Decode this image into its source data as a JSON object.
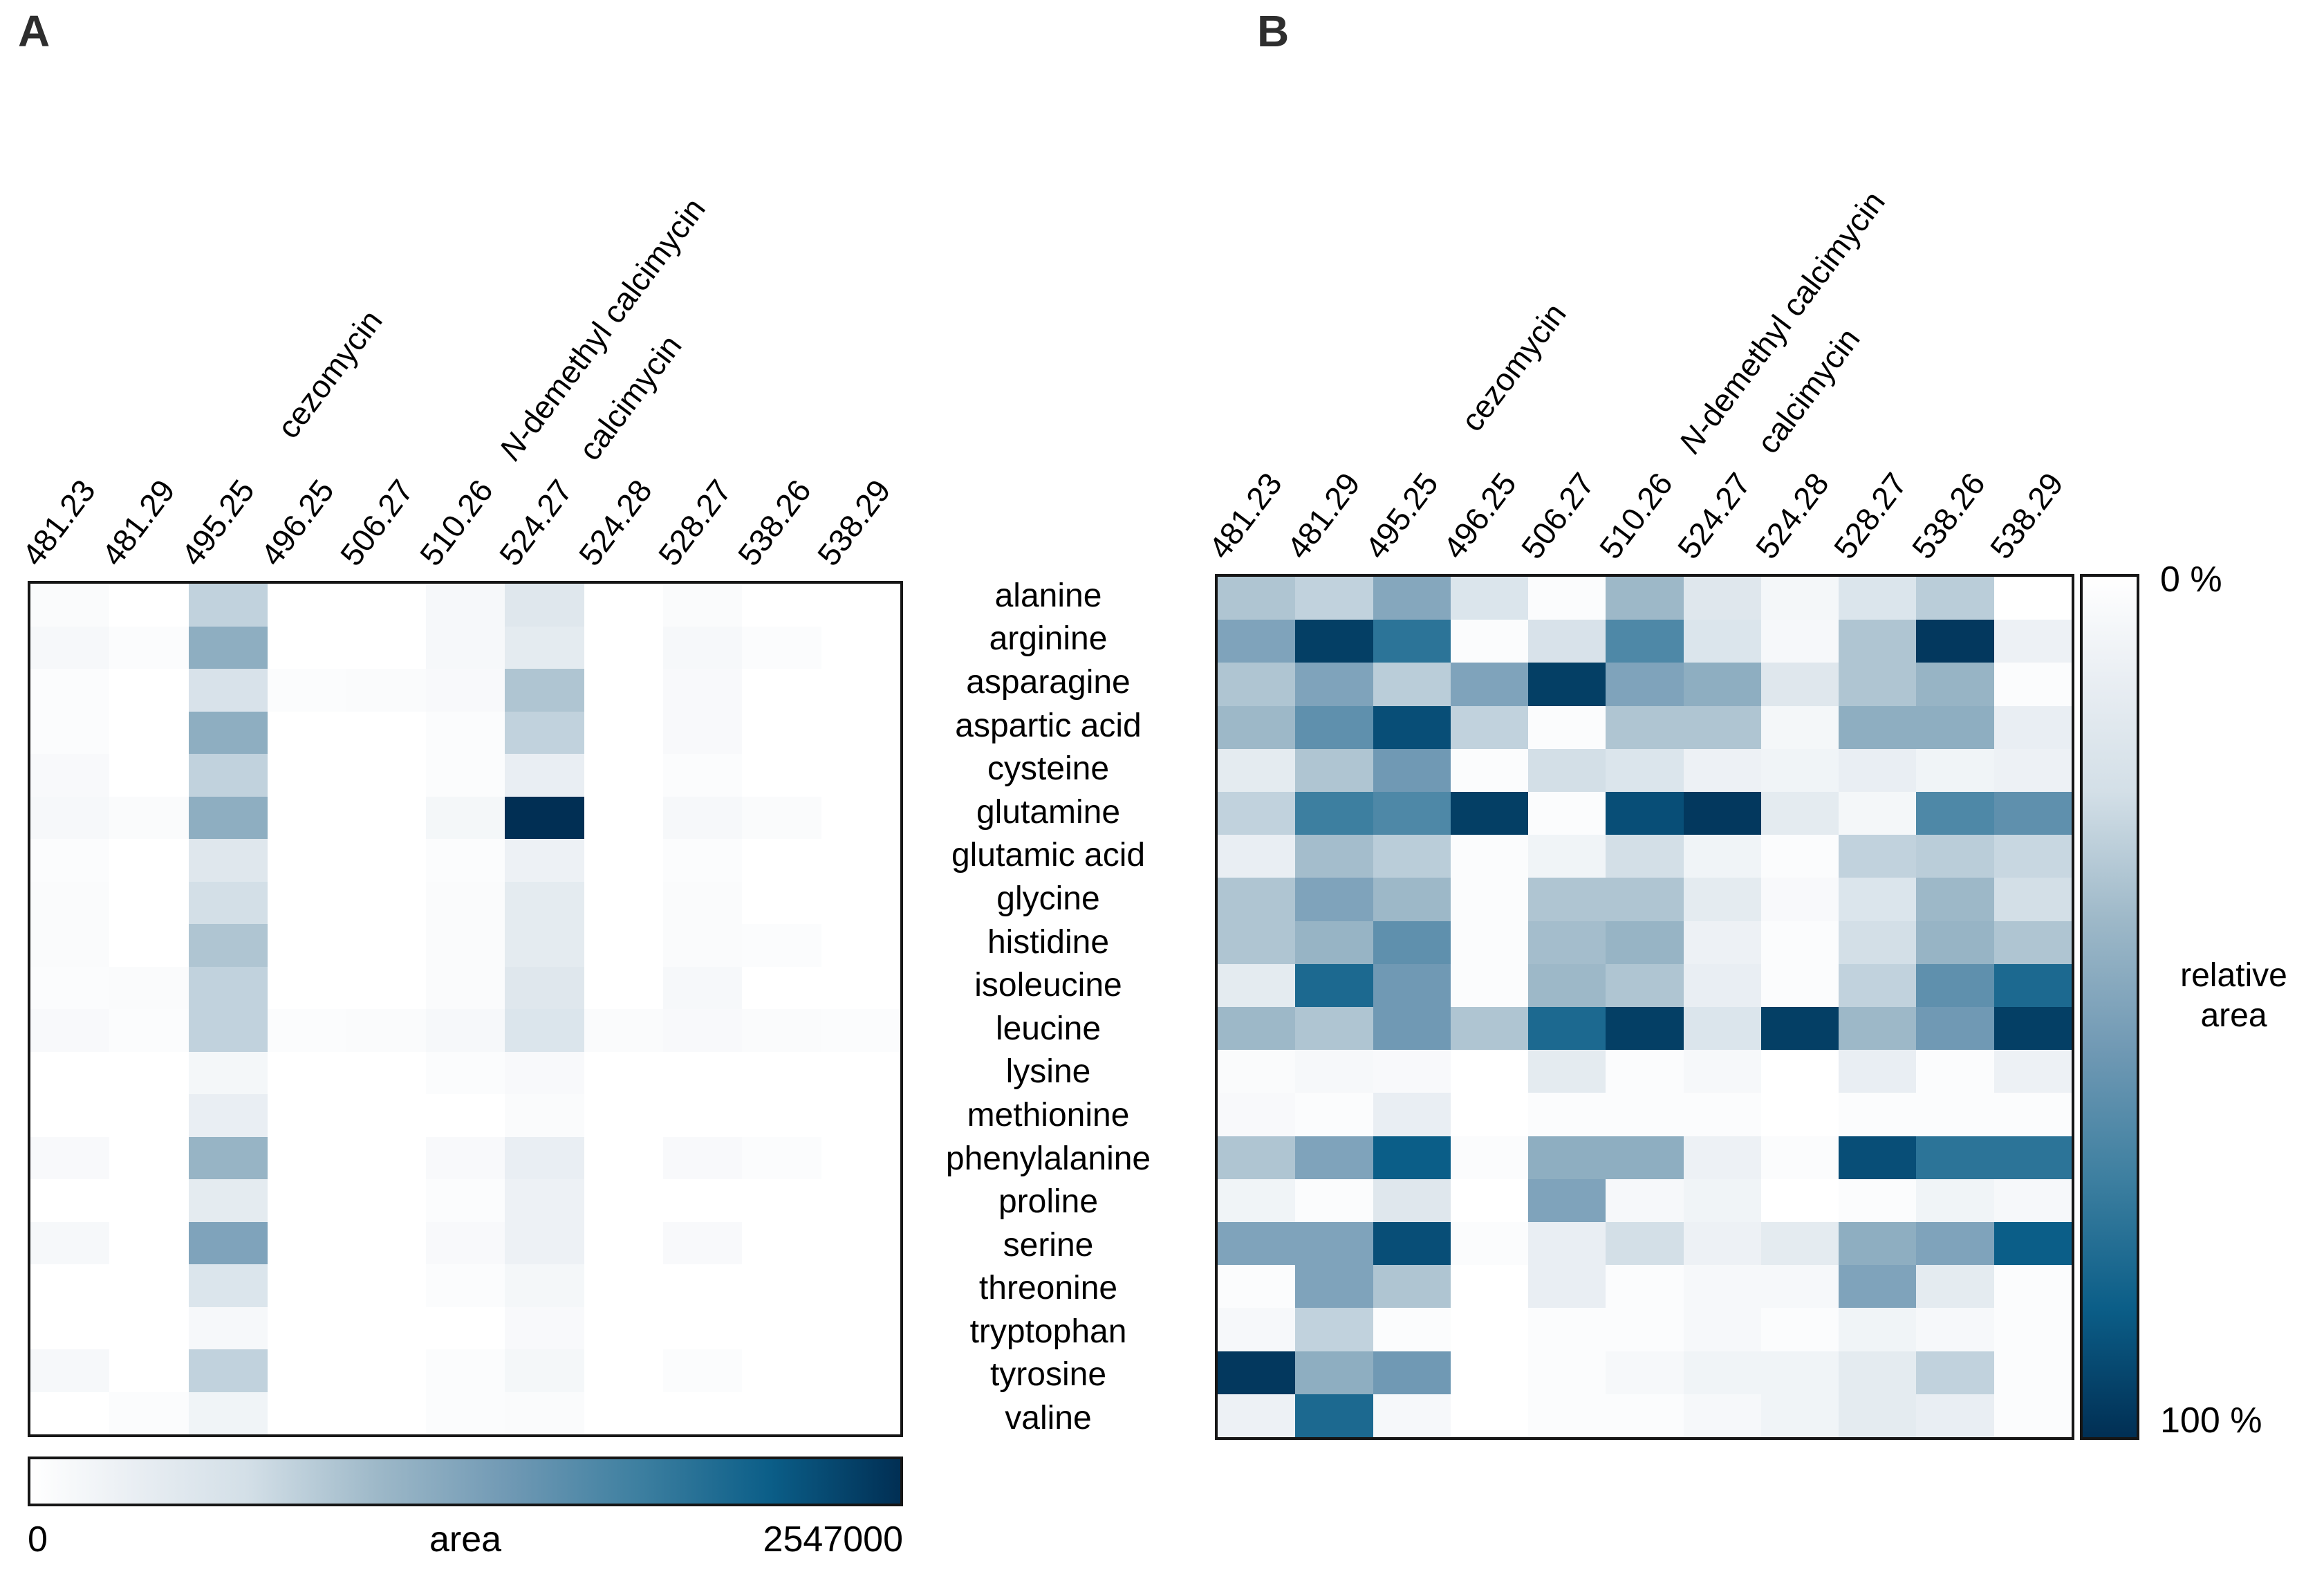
{
  "figure": {
    "panel_a_letter": "A",
    "panel_b_letter": "B",
    "colorbar_a": {
      "min": "0",
      "title": "area",
      "max": "2547000"
    },
    "colorbar_b": {
      "min": "0 %",
      "title_lines": [
        "relative",
        "area"
      ],
      "max": "100 %"
    }
  },
  "colormap_stops": [
    [
      0.0,
      "#ffffff"
    ],
    [
      0.12,
      "#e9eef3"
    ],
    [
      0.25,
      "#d3dfe7"
    ],
    [
      0.4,
      "#9db8c8"
    ],
    [
      0.55,
      "#7099b4"
    ],
    [
      0.7,
      "#3d7fa0"
    ],
    [
      0.85,
      "#0b5e88"
    ],
    [
      1.0,
      "#012f54"
    ]
  ],
  "chart_data": [
    {
      "type": "heatmap",
      "panel": "A",
      "legend": "area",
      "value_range": [
        0,
        2547000
      ],
      "values_are": "fraction_of_max",
      "columns": [
        {
          "m_z": "481.23",
          "compound": ""
        },
        {
          "m_z": "481.29",
          "compound": ""
        },
        {
          "m_z": "495.25",
          "compound": "cezomycin"
        },
        {
          "m_z": "496.25",
          "compound": ""
        },
        {
          "m_z": "506.27",
          "compound": ""
        },
        {
          "m_z": "510.26",
          "compound": "N-demethyl calcimycin"
        },
        {
          "m_z": "524.27",
          "compound": "calcimycin"
        },
        {
          "m_z": "524.28",
          "compound": ""
        },
        {
          "m_z": "528.27",
          "compound": ""
        },
        {
          "m_z": "538.26",
          "compound": ""
        },
        {
          "m_z": "538.29",
          "compound": ""
        }
      ],
      "rows": [
        "alanine",
        "arginine",
        "asparagine",
        "aspartic acid",
        "cysteine",
        "glutamine",
        "glutamic acid",
        "glycine",
        "histidine",
        "isoleucine",
        "leucine",
        "lysine",
        "methionine",
        "phenylalanine",
        "proline",
        "serine",
        "threonine",
        "tryptophan",
        "tyrosine",
        "valine"
      ],
      "matrix": [
        [
          0.03,
          0.0,
          0.3,
          0.0,
          0.0,
          0.05,
          0.18,
          0.0,
          0.03,
          0.0,
          0.0
        ],
        [
          0.05,
          0.02,
          0.45,
          0.0,
          0.0,
          0.05,
          0.15,
          0.0,
          0.05,
          0.02,
          0.0
        ],
        [
          0.02,
          0.0,
          0.22,
          0.02,
          0.03,
          0.04,
          0.35,
          0.0,
          0.04,
          0.0,
          0.0
        ],
        [
          0.02,
          0.0,
          0.45,
          0.0,
          0.0,
          0.02,
          0.3,
          0.0,
          0.04,
          0.0,
          0.0
        ],
        [
          0.04,
          0.0,
          0.3,
          0.0,
          0.0,
          0.02,
          0.12,
          0.0,
          0.02,
          0.0,
          0.0
        ],
        [
          0.05,
          0.03,
          0.45,
          0.0,
          0.0,
          0.06,
          1.0,
          0.0,
          0.05,
          0.03,
          0.0
        ],
        [
          0.02,
          0.0,
          0.18,
          0.0,
          0.0,
          0.02,
          0.1,
          0.0,
          0.02,
          0.0,
          0.0
        ],
        [
          0.03,
          0.0,
          0.25,
          0.0,
          0.0,
          0.03,
          0.15,
          0.0,
          0.03,
          0.0,
          0.0
        ],
        [
          0.03,
          0.0,
          0.35,
          0.0,
          0.0,
          0.03,
          0.15,
          0.0,
          0.03,
          0.02,
          0.0
        ],
        [
          0.02,
          0.03,
          0.3,
          0.0,
          0.0,
          0.03,
          0.18,
          0.0,
          0.05,
          0.0,
          0.0
        ],
        [
          0.04,
          0.02,
          0.3,
          0.02,
          0.03,
          0.05,
          0.2,
          0.03,
          0.04,
          0.03,
          0.02
        ],
        [
          0.0,
          0.0,
          0.06,
          0.0,
          0.0,
          0.02,
          0.04,
          0.0,
          0.0,
          0.0,
          0.0
        ],
        [
          0.0,
          0.0,
          0.12,
          0.0,
          0.0,
          0.0,
          0.03,
          0.0,
          0.0,
          0.0,
          0.0
        ],
        [
          0.04,
          0.0,
          0.42,
          0.0,
          0.0,
          0.04,
          0.12,
          0.0,
          0.04,
          0.02,
          0.0
        ],
        [
          0.0,
          0.0,
          0.15,
          0.0,
          0.0,
          0.02,
          0.1,
          0.0,
          0.0,
          0.0,
          0.0
        ],
        [
          0.05,
          0.0,
          0.5,
          0.0,
          0.0,
          0.04,
          0.1,
          0.0,
          0.04,
          0.0,
          0.0
        ],
        [
          0.0,
          0.0,
          0.2,
          0.0,
          0.0,
          0.02,
          0.06,
          0.0,
          0.0,
          0.0,
          0.0
        ],
        [
          0.0,
          0.0,
          0.05,
          0.0,
          0.0,
          0.0,
          0.04,
          0.0,
          0.0,
          0.0,
          0.0
        ],
        [
          0.05,
          0.0,
          0.3,
          0.0,
          0.0,
          0.02,
          0.06,
          0.0,
          0.02,
          0.0,
          0.0
        ],
        [
          0.0,
          0.02,
          0.08,
          0.0,
          0.0,
          0.02,
          0.03,
          0.0,
          0.0,
          0.0,
          0.0
        ]
      ]
    },
    {
      "type": "heatmap",
      "panel": "B",
      "legend": "relative area",
      "value_range": [
        0,
        100
      ],
      "values_are": "percent",
      "columns": [
        {
          "m_z": "481.23",
          "compound": ""
        },
        {
          "m_z": "481.29",
          "compound": ""
        },
        {
          "m_z": "495.25",
          "compound": "cezomycin"
        },
        {
          "m_z": "496.25",
          "compound": ""
        },
        {
          "m_z": "506.27",
          "compound": ""
        },
        {
          "m_z": "510.26",
          "compound": "N-demethyl calcimycin"
        },
        {
          "m_z": "524.27",
          "compound": "calcimycin"
        },
        {
          "m_z": "524.28",
          "compound": ""
        },
        {
          "m_z": "528.27",
          "compound": ""
        },
        {
          "m_z": "538.26",
          "compound": ""
        },
        {
          "m_z": "538.29",
          "compound": ""
        }
      ],
      "rows": [
        "alanine",
        "arginine",
        "asparagine",
        "aspartic acid",
        "cysteine",
        "glutamine",
        "glutamic acid",
        "glycine",
        "histidine",
        "isoleucine",
        "leucine",
        "lysine",
        "methionine",
        "phenylalanine",
        "proline",
        "serine",
        "threonine",
        "tryptophan",
        "tyrosine",
        "valine"
      ],
      "matrix": [
        [
          35,
          30,
          48,
          20,
          2,
          40,
          18,
          6,
          20,
          32,
          0
        ],
        [
          50,
          95,
          75,
          2,
          22,
          65,
          20,
          5,
          35,
          97,
          10
        ],
        [
          35,
          50,
          32,
          50,
          95,
          50,
          45,
          18,
          35,
          42,
          2
        ],
        [
          40,
          60,
          90,
          30,
          2,
          35,
          35,
          6,
          45,
          45,
          12
        ],
        [
          15,
          35,
          55,
          2,
          25,
          20,
          10,
          8,
          12,
          8,
          10
        ],
        [
          30,
          70,
          65,
          95,
          2,
          90,
          97,
          15,
          6,
          65,
          60
        ],
        [
          12,
          38,
          32,
          2,
          8,
          25,
          8,
          2,
          30,
          32,
          28
        ],
        [
          35,
          50,
          40,
          2,
          35,
          35,
          15,
          4,
          20,
          40,
          25
        ],
        [
          35,
          42,
          60,
          2,
          38,
          42,
          10,
          2,
          25,
          42,
          35
        ],
        [
          15,
          80,
          55,
          2,
          40,
          35,
          12,
          2,
          30,
          60,
          80
        ],
        [
          40,
          35,
          55,
          35,
          80,
          95,
          20,
          95,
          40,
          55,
          95
        ],
        [
          3,
          5,
          4,
          0,
          15,
          2,
          5,
          0,
          12,
          2,
          10
        ],
        [
          4,
          2,
          12,
          0,
          2,
          2,
          2,
          0,
          2,
          2,
          2
        ],
        [
          35,
          50,
          85,
          2,
          45,
          45,
          10,
          2,
          90,
          75,
          75
        ],
        [
          8,
          2,
          18,
          0,
          50,
          5,
          8,
          0,
          2,
          8,
          5
        ],
        [
          50,
          50,
          90,
          2,
          12,
          25,
          10,
          15,
          45,
          50,
          85
        ],
        [
          2,
          50,
          35,
          0,
          12,
          2,
          5,
          5,
          50,
          15,
          2
        ],
        [
          5,
          30,
          2,
          0,
          2,
          2,
          5,
          2,
          8,
          5,
          2
        ],
        [
          97,
          45,
          55,
          0,
          2,
          5,
          8,
          8,
          15,
          30,
          2
        ],
        [
          10,
          80,
          5,
          0,
          2,
          2,
          5,
          8,
          15,
          12,
          2
        ]
      ]
    }
  ]
}
